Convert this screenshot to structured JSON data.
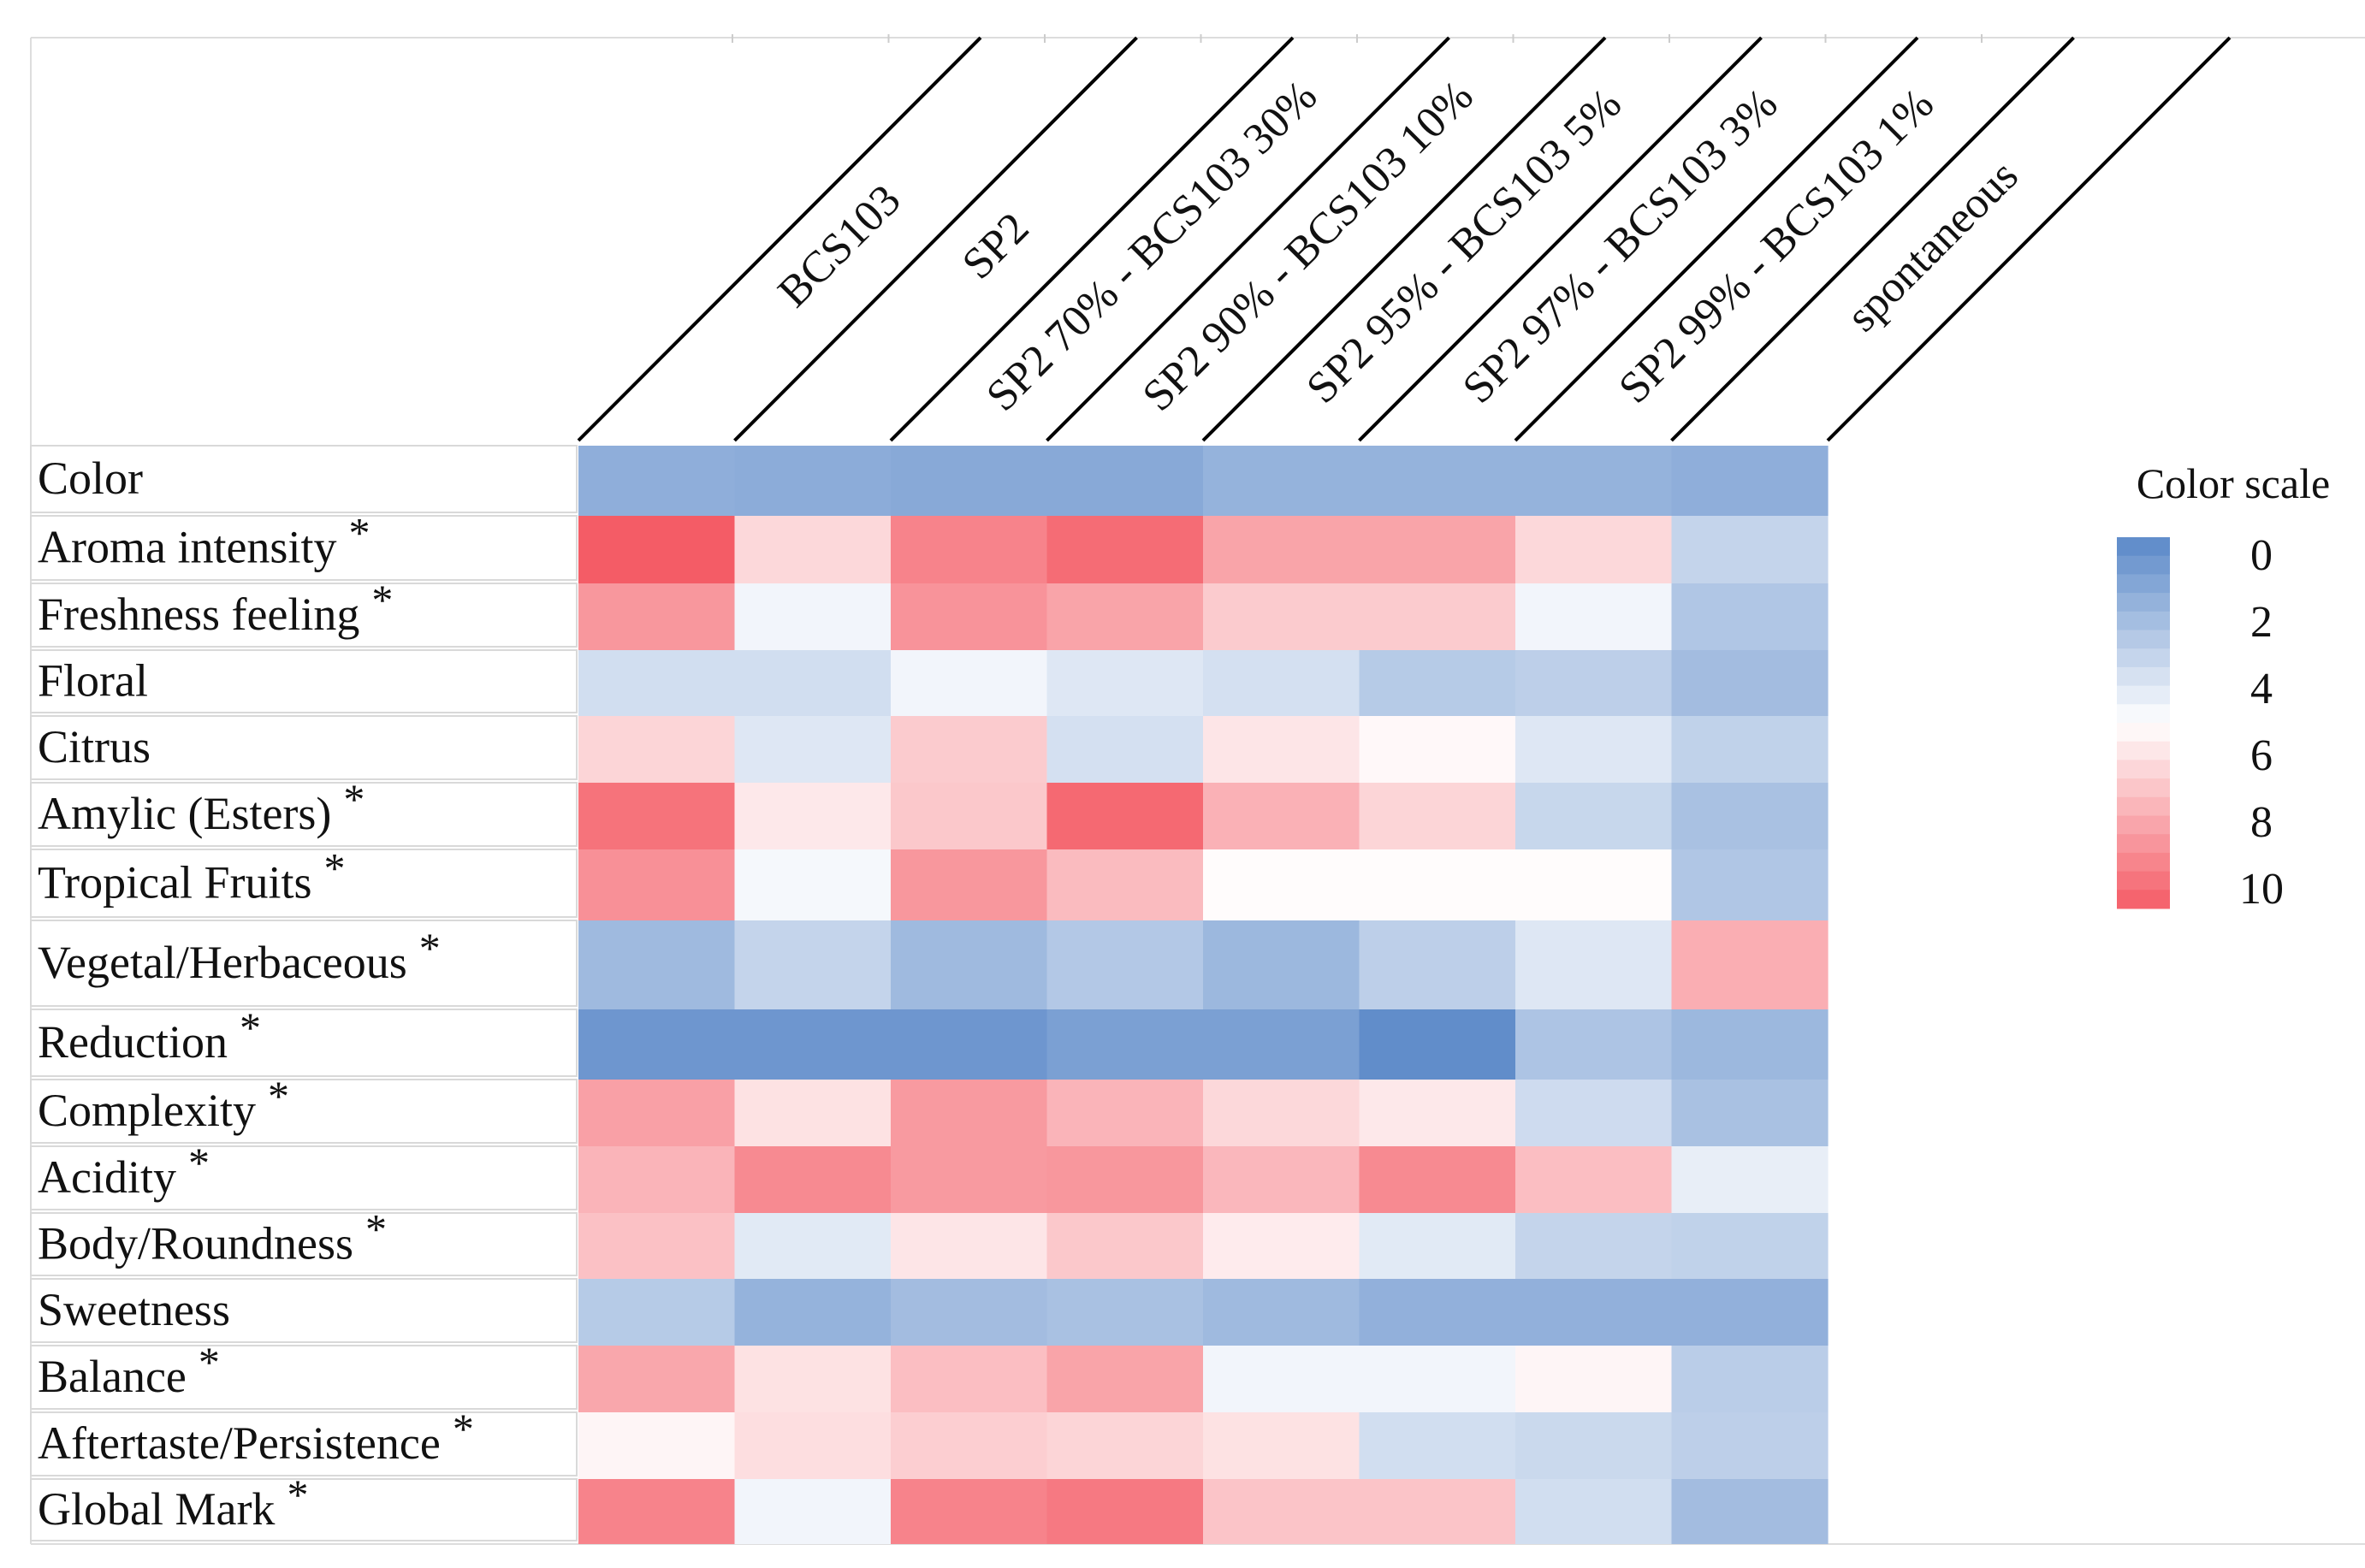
{
  "chart_data": {
    "type": "heatmap",
    "title": "",
    "columns": [
      "BCS103",
      "SP2",
      "SP2 70% - BCS103 30%",
      "SP2 90% - BCS103 10%",
      "SP2 95% - BCS103 5%",
      "SP2 97% - BCS103 3%",
      "SP2 99% - BCS103 1%",
      "spontaneous"
    ],
    "rows": [
      {
        "label": "Color",
        "marker": "",
        "values": [
          1.6,
          1.5,
          1.4,
          1.4,
          1.8,
          1.8,
          1.8,
          1.6
        ]
      },
      {
        "label": "Aroma intensity",
        "marker": "*",
        "values": [
          10.0,
          6.2,
          8.8,
          9.5,
          7.8,
          7.8,
          6.2,
          3.2
        ]
      },
      {
        "label": "Freshness feeling",
        "marker": "*",
        "values": [
          8.2,
          4.6,
          8.3,
          7.8,
          6.6,
          6.6,
          4.6,
          2.6
        ]
      },
      {
        "label": "Floral",
        "marker": "",
        "values": [
          3.6,
          3.6,
          4.6,
          4.0,
          3.7,
          2.8,
          3.0,
          2.2
        ]
      },
      {
        "label": "Citrus",
        "marker": "",
        "values": [
          6.3,
          4.0,
          6.6,
          3.7,
          5.8,
          5.2,
          4.0,
          3.1
        ]
      },
      {
        "label": "Amylic (Esters)",
        "marker": "*",
        "values": [
          9.3,
          5.7,
          6.7,
          9.6,
          7.4,
          6.3,
          3.3,
          2.4
        ]
      },
      {
        "label": "Tropical Fruits",
        "marker": "*",
        "values": [
          8.4,
          4.7,
          8.2,
          7.1,
          5.1,
          5.1,
          5.1,
          2.6
        ]
      },
      {
        "label": "Vegetal/Herbaceous",
        "marker": "*",
        "values": [
          2.1,
          3.2,
          2.1,
          2.7,
          2.0,
          3.0,
          4.0,
          7.5
        ]
      },
      {
        "label": "Reduction",
        "marker": "*",
        "values": [
          0.6,
          0.6,
          0.6,
          1.0,
          1.0,
          0.2,
          2.5,
          2.0
        ]
      },
      {
        "label": "Complexity",
        "marker": "*",
        "values": [
          7.9,
          5.9,
          8.1,
          7.3,
          6.2,
          5.7,
          3.5,
          2.4
        ]
      },
      {
        "label": "Acidity",
        "marker": "*",
        "values": [
          7.3,
          8.6,
          8.1,
          8.2,
          7.2,
          8.6,
          7.0,
          4.3
        ]
      },
      {
        "label": "Body/Roundness",
        "marker": "*",
        "values": [
          6.9,
          4.1,
          5.8,
          6.7,
          5.6,
          4.1,
          3.2,
          3.1
        ]
      },
      {
        "label": "Sweetness",
        "marker": "",
        "values": [
          2.8,
          1.8,
          2.2,
          2.4,
          2.1,
          1.7,
          1.7,
          1.7
        ]
      },
      {
        "label": "Balance",
        "marker": "*",
        "values": [
          7.7,
          5.9,
          7.0,
          7.8,
          4.6,
          4.6,
          5.3,
          2.9
        ]
      },
      {
        "label": "Aftertaste/Persistence",
        "marker": "*",
        "values": [
          5.3,
          6.0,
          6.5,
          6.3,
          5.9,
          3.6,
          3.4,
          3.0
        ]
      },
      {
        "label": "Global Mark",
        "marker": "*",
        "values": [
          8.8,
          4.6,
          8.8,
          9.1,
          6.8,
          6.8,
          3.6,
          2.2
        ]
      }
    ],
    "scale": {
      "title": "Color scale",
      "min": 0,
      "max": 10,
      "ticks": [
        "0",
        "2",
        "4",
        "6",
        "8",
        "10"
      ],
      "low_color": "#5a88c8",
      "mid_color": "#ffffff",
      "high_color": "#f45c66"
    }
  }
}
